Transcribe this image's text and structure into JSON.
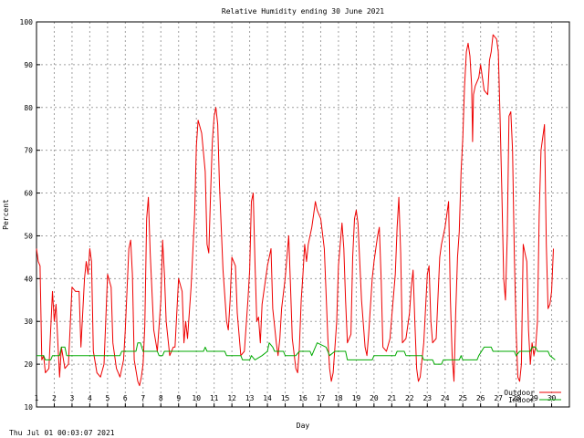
{
  "chart_data": {
    "type": "line",
    "title": "Relative Humidity ending 30 June 2021",
    "xlabel": "Day",
    "ylabel": "Percent",
    "xlim": [
      1,
      31
    ],
    "ylim": [
      10,
      100
    ],
    "x_ticks": [
      "1",
      "2",
      "3",
      "4",
      "5",
      "6",
      "7",
      "8",
      "9",
      "10",
      "11",
      "12",
      "13",
      "14",
      "15",
      "16",
      "17",
      "18",
      "19",
      "20",
      "21",
      "22",
      "23",
      "24",
      "25",
      "26",
      "27",
      "28",
      "29",
      "30"
    ],
    "y_ticks": [
      "10",
      "20",
      "30",
      "40",
      "50",
      "60",
      "70",
      "80",
      "90",
      "100"
    ],
    "grid": true,
    "legend_position": "bottom-right",
    "series": [
      {
        "name": "Outdoor",
        "color": "#ee0000",
        "points": [
          [
            1.0,
            47
          ],
          [
            1.1,
            44
          ],
          [
            1.2,
            43
          ],
          [
            1.3,
            21
          ],
          [
            1.4,
            22
          ],
          [
            1.5,
            18
          ],
          [
            1.7,
            19
          ],
          [
            1.9,
            37
          ],
          [
            2.0,
            30
          ],
          [
            2.1,
            34
          ],
          [
            2.2,
            25
          ],
          [
            2.3,
            17
          ],
          [
            2.4,
            24
          ],
          [
            2.6,
            19
          ],
          [
            2.8,
            20
          ],
          [
            3.0,
            38
          ],
          [
            3.2,
            37
          ],
          [
            3.4,
            37
          ],
          [
            3.5,
            24
          ],
          [
            3.7,
            40
          ],
          [
            3.8,
            44
          ],
          [
            3.9,
            41
          ],
          [
            4.0,
            47
          ],
          [
            4.1,
            44
          ],
          [
            4.2,
            23
          ],
          [
            4.4,
            18
          ],
          [
            4.6,
            17
          ],
          [
            4.8,
            20
          ],
          [
            5.0,
            41
          ],
          [
            5.2,
            38
          ],
          [
            5.3,
            25
          ],
          [
            5.5,
            19
          ],
          [
            5.7,
            17
          ],
          [
            5.9,
            21
          ],
          [
            6.0,
            28
          ],
          [
            6.2,
            47
          ],
          [
            6.3,
            49
          ],
          [
            6.4,
            41
          ],
          [
            6.5,
            21
          ],
          [
            6.7,
            16
          ],
          [
            6.8,
            15
          ],
          [
            6.9,
            17
          ],
          [
            7.0,
            20
          ],
          [
            7.1,
            29
          ],
          [
            7.2,
            54
          ],
          [
            7.3,
            59
          ],
          [
            7.4,
            46
          ],
          [
            7.6,
            28
          ],
          [
            7.8,
            23
          ],
          [
            8.0,
            35
          ],
          [
            8.1,
            49
          ],
          [
            8.2,
            41
          ],
          [
            8.3,
            30
          ],
          [
            8.5,
            22
          ],
          [
            8.7,
            24
          ],
          [
            8.8,
            24
          ],
          [
            9.0,
            40
          ],
          [
            9.2,
            37
          ],
          [
            9.3,
            25
          ],
          [
            9.4,
            30
          ],
          [
            9.5,
            26
          ],
          [
            9.7,
            38
          ],
          [
            9.9,
            55
          ],
          [
            10.0,
            71
          ],
          [
            10.1,
            77
          ],
          [
            10.3,
            74
          ],
          [
            10.5,
            65
          ],
          [
            10.6,
            48
          ],
          [
            10.7,
            46
          ],
          [
            10.8,
            60
          ],
          [
            10.9,
            72
          ],
          [
            11.0,
            78
          ],
          [
            11.1,
            80
          ],
          [
            11.2,
            76
          ],
          [
            11.3,
            62
          ],
          [
            11.5,
            42
          ],
          [
            11.7,
            30
          ],
          [
            11.8,
            28
          ],
          [
            11.9,
            35
          ],
          [
            12.0,
            45
          ],
          [
            12.2,
            43
          ],
          [
            12.3,
            32
          ],
          [
            12.5,
            22
          ],
          [
            12.7,
            23
          ],
          [
            12.9,
            35
          ],
          [
            13.0,
            42
          ],
          [
            13.1,
            58
          ],
          [
            13.2,
            60
          ],
          [
            13.3,
            44
          ],
          [
            13.4,
            30
          ],
          [
            13.5,
            31
          ],
          [
            13.6,
            25
          ],
          [
            13.7,
            34
          ],
          [
            14.0,
            43
          ],
          [
            14.2,
            47
          ],
          [
            14.3,
            33
          ],
          [
            14.5,
            25
          ],
          [
            14.6,
            22
          ],
          [
            14.7,
            26
          ],
          [
            14.8,
            33
          ],
          [
            15.0,
            40
          ],
          [
            15.2,
            50
          ],
          [
            15.3,
            38
          ],
          [
            15.4,
            26
          ],
          [
            15.6,
            19
          ],
          [
            15.7,
            18
          ],
          [
            15.8,
            24
          ],
          [
            15.9,
            35
          ],
          [
            16.0,
            41
          ],
          [
            16.1,
            48
          ],
          [
            16.2,
            44
          ],
          [
            16.3,
            48
          ],
          [
            16.5,
            52
          ],
          [
            16.6,
            55
          ],
          [
            16.7,
            58
          ],
          [
            16.8,
            56
          ],
          [
            16.9,
            55
          ],
          [
            17.0,
            54
          ],
          [
            17.2,
            47
          ],
          [
            17.4,
            26
          ],
          [
            17.5,
            19
          ],
          [
            17.6,
            16
          ],
          [
            17.7,
            18
          ],
          [
            17.9,
            30
          ],
          [
            18.0,
            43
          ],
          [
            18.2,
            53
          ],
          [
            18.3,
            47
          ],
          [
            18.4,
            35
          ],
          [
            18.5,
            25
          ],
          [
            18.7,
            27
          ],
          [
            18.8,
            45
          ],
          [
            18.9,
            54
          ],
          [
            19.0,
            56
          ],
          [
            19.1,
            53
          ],
          [
            19.3,
            35
          ],
          [
            19.5,
            24
          ],
          [
            19.6,
            22
          ],
          [
            19.7,
            27
          ],
          [
            19.9,
            40
          ],
          [
            20.0,
            44
          ],
          [
            20.2,
            50
          ],
          [
            20.3,
            52
          ],
          [
            20.4,
            40
          ],
          [
            20.5,
            24
          ],
          [
            20.7,
            23
          ],
          [
            20.9,
            26
          ],
          [
            21.0,
            31
          ],
          [
            21.2,
            41
          ],
          [
            21.3,
            52
          ],
          [
            21.4,
            59
          ],
          [
            21.5,
            46
          ],
          [
            21.6,
            25
          ],
          [
            21.8,
            26
          ],
          [
            22.0,
            32
          ],
          [
            22.1,
            38
          ],
          [
            22.2,
            42
          ],
          [
            22.3,
            30
          ],
          [
            22.4,
            19
          ],
          [
            22.5,
            16
          ],
          [
            22.6,
            17
          ],
          [
            22.8,
            25
          ],
          [
            23.0,
            41
          ],
          [
            23.1,
            43
          ],
          [
            23.2,
            30
          ],
          [
            23.3,
            25
          ],
          [
            23.5,
            26
          ],
          [
            23.7,
            45
          ],
          [
            23.8,
            48
          ],
          [
            24.0,
            52
          ],
          [
            24.1,
            55
          ],
          [
            24.2,
            58
          ],
          [
            24.3,
            35
          ],
          [
            24.4,
            22
          ],
          [
            24.5,
            16
          ],
          [
            24.6,
            32
          ],
          [
            24.7,
            45
          ],
          [
            24.8,
            51
          ],
          [
            24.9,
            65
          ],
          [
            25.0,
            73
          ],
          [
            25.1,
            85
          ],
          [
            25.2,
            93
          ],
          [
            25.3,
            95
          ],
          [
            25.4,
            92
          ],
          [
            25.5,
            85
          ],
          [
            25.55,
            72
          ],
          [
            25.6,
            83
          ],
          [
            25.7,
            85
          ],
          [
            25.9,
            87
          ],
          [
            26.0,
            90
          ],
          [
            26.2,
            84
          ],
          [
            26.4,
            83
          ],
          [
            26.5,
            91
          ],
          [
            26.6,
            93
          ],
          [
            26.7,
            97
          ],
          [
            26.9,
            96
          ],
          [
            27.0,
            93
          ],
          [
            27.1,
            77
          ],
          [
            27.2,
            60
          ],
          [
            27.3,
            40
          ],
          [
            27.4,
            35
          ],
          [
            27.5,
            50
          ],
          [
            27.6,
            78
          ],
          [
            27.7,
            79
          ],
          [
            27.8,
            70
          ],
          [
            27.9,
            45
          ],
          [
            28.0,
            28
          ],
          [
            28.1,
            17
          ],
          [
            28.2,
            16
          ],
          [
            28.3,
            20
          ],
          [
            28.4,
            48
          ],
          [
            28.5,
            46
          ],
          [
            28.6,
            44
          ],
          [
            28.7,
            28
          ],
          [
            28.8,
            20
          ],
          [
            28.9,
            25
          ],
          [
            29.0,
            22
          ],
          [
            29.1,
            24
          ],
          [
            29.2,
            30
          ],
          [
            29.3,
            55
          ],
          [
            29.4,
            70
          ],
          [
            29.5,
            73
          ],
          [
            29.6,
            76
          ],
          [
            29.7,
            48
          ],
          [
            29.8,
            33
          ],
          [
            29.9,
            34
          ],
          [
            30.0,
            37
          ],
          [
            30.1,
            47
          ]
        ]
      },
      {
        "name": "Indoor",
        "color": "#00aa00",
        "points": [
          [
            1.0,
            22
          ],
          [
            1.4,
            22
          ],
          [
            1.5,
            21
          ],
          [
            1.8,
            21
          ],
          [
            1.9,
            22
          ],
          [
            2.3,
            22
          ],
          [
            2.4,
            24
          ],
          [
            2.6,
            24
          ],
          [
            2.7,
            22
          ],
          [
            5.7,
            22
          ],
          [
            5.8,
            23
          ],
          [
            6.6,
            23
          ],
          [
            6.7,
            25
          ],
          [
            6.85,
            25
          ],
          [
            7.0,
            23
          ],
          [
            7.8,
            23
          ],
          [
            7.9,
            22
          ],
          [
            8.1,
            22
          ],
          [
            8.2,
            23
          ],
          [
            10.4,
            23
          ],
          [
            10.5,
            24
          ],
          [
            10.6,
            23
          ],
          [
            11.6,
            23
          ],
          [
            11.7,
            22
          ],
          [
            12.5,
            22
          ],
          [
            12.6,
            21
          ],
          [
            13.0,
            21
          ],
          [
            13.1,
            22
          ],
          [
            13.3,
            21
          ],
          [
            13.7,
            22
          ],
          [
            14.0,
            23
          ],
          [
            14.1,
            25
          ],
          [
            14.3,
            24
          ],
          [
            14.4,
            23
          ],
          [
            14.9,
            23
          ],
          [
            15.0,
            22
          ],
          [
            15.6,
            22
          ],
          [
            15.8,
            23
          ],
          [
            16.4,
            23
          ],
          [
            16.5,
            22
          ],
          [
            16.7,
            24
          ],
          [
            16.8,
            25
          ],
          [
            17.3,
            24
          ],
          [
            17.5,
            22
          ],
          [
            17.8,
            23
          ],
          [
            18.4,
            23
          ],
          [
            18.5,
            21
          ],
          [
            19.9,
            21
          ],
          [
            20.0,
            22
          ],
          [
            21.2,
            22
          ],
          [
            21.3,
            23
          ],
          [
            21.7,
            23
          ],
          [
            21.8,
            22
          ],
          [
            22.7,
            22
          ],
          [
            22.8,
            21
          ],
          [
            23.3,
            21
          ],
          [
            23.4,
            20
          ],
          [
            23.8,
            20
          ],
          [
            23.9,
            21
          ],
          [
            24.8,
            21
          ],
          [
            24.9,
            22
          ],
          [
            25.0,
            21
          ],
          [
            25.8,
            21
          ],
          [
            25.9,
            22
          ],
          [
            26.2,
            24
          ],
          [
            26.6,
            24
          ],
          [
            26.7,
            23
          ],
          [
            27.9,
            23
          ],
          [
            28.0,
            22
          ],
          [
            28.2,
            23
          ],
          [
            28.8,
            23
          ],
          [
            28.9,
            24
          ],
          [
            29.1,
            24
          ],
          [
            29.2,
            23
          ],
          [
            29.8,
            23
          ],
          [
            29.9,
            22
          ],
          [
            30.2,
            21
          ]
        ]
      }
    ]
  },
  "footer": {
    "timestamp": "Thu Jul 01 00:03:07 2021"
  }
}
